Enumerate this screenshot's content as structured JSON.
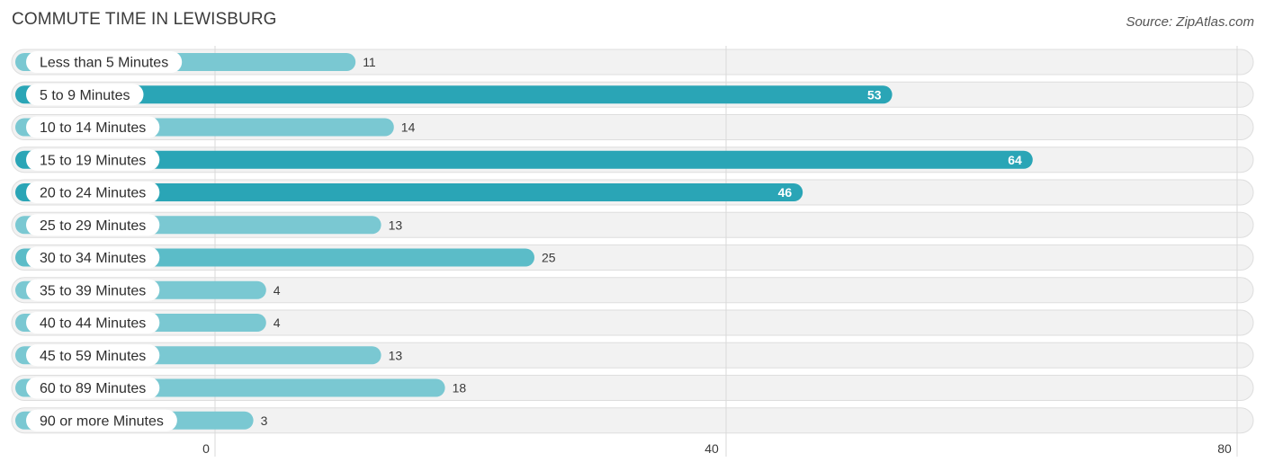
{
  "header": {
    "title": "COMMUTE TIME IN LEWISBURG",
    "source": "Source: ZipAtlas.com"
  },
  "colors": {
    "bar_light": "#7ac8d2",
    "bar_mid": "#5bbcc8",
    "bar_dark": "#2aa5b6"
  },
  "chart_data": {
    "type": "bar",
    "orientation": "horizontal",
    "title": "COMMUTE TIME IN LEWISBURG",
    "categories": [
      "Less than 5 Minutes",
      "5 to 9 Minutes",
      "10 to 14 Minutes",
      "15 to 19 Minutes",
      "20 to 24 Minutes",
      "25 to 29 Minutes",
      "30 to 34 Minutes",
      "35 to 39 Minutes",
      "40 to 44 Minutes",
      "45 to 59 Minutes",
      "60 to 89 Minutes",
      "90 or more Minutes"
    ],
    "values": [
      11,
      53,
      14,
      64,
      46,
      13,
      25,
      4,
      4,
      13,
      18,
      3
    ],
    "xlim": [
      0,
      80
    ],
    "xticks": [
      0,
      40,
      80
    ],
    "xlabel": "",
    "ylabel": "",
    "grid": true
  }
}
